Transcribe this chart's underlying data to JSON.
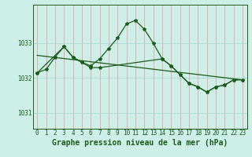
{
  "title": "Graphe pression niveau de la mer (hPa)",
  "bg_color": "#ceeee8",
  "grid_color_v": "#e8a0a0",
  "line_color": "#1a5c1a",
  "ylim": [
    1030.55,
    1034.1
  ],
  "yticks": [
    1031,
    1032,
    1033
  ],
  "xlim": [
    -0.5,
    23.5
  ],
  "xticks": [
    0,
    1,
    2,
    3,
    4,
    5,
    6,
    7,
    8,
    9,
    10,
    11,
    12,
    13,
    14,
    15,
    16,
    17,
    18,
    19,
    20,
    21,
    22,
    23
  ],
  "line1_x": [
    0,
    1,
    2,
    3,
    4,
    5,
    6,
    7,
    8,
    9,
    10,
    11,
    12,
    13,
    14,
    15,
    16,
    17,
    18,
    19,
    20,
    21,
    22,
    23
  ],
  "line1_y": [
    1032.15,
    1032.25,
    1032.6,
    1032.9,
    1032.6,
    1032.45,
    1032.35,
    1032.55,
    1032.85,
    1033.15,
    1033.55,
    1033.65,
    1033.4,
    1033.0,
    1032.55,
    1032.35,
    1032.1,
    1031.85,
    1031.75,
    1031.6,
    1031.75,
    1031.8,
    1031.95,
    1031.95
  ],
  "line2_x": [
    0,
    3,
    4,
    5,
    6,
    7,
    14,
    15,
    16,
    17,
    18,
    19,
    20,
    21,
    22,
    23
  ],
  "line2_y": [
    1032.15,
    1032.9,
    1032.6,
    1032.45,
    1032.3,
    1032.3,
    1032.55,
    1032.35,
    1032.1,
    1031.85,
    1031.75,
    1031.6,
    1031.75,
    1031.8,
    1031.95,
    1031.95
  ],
  "line3_x": [
    0,
    23
  ],
  "line3_y": [
    1032.65,
    1031.95
  ],
  "fontsize_label": 7,
  "fontsize_tick": 5.5,
  "tick_color": "#2a6b2a"
}
